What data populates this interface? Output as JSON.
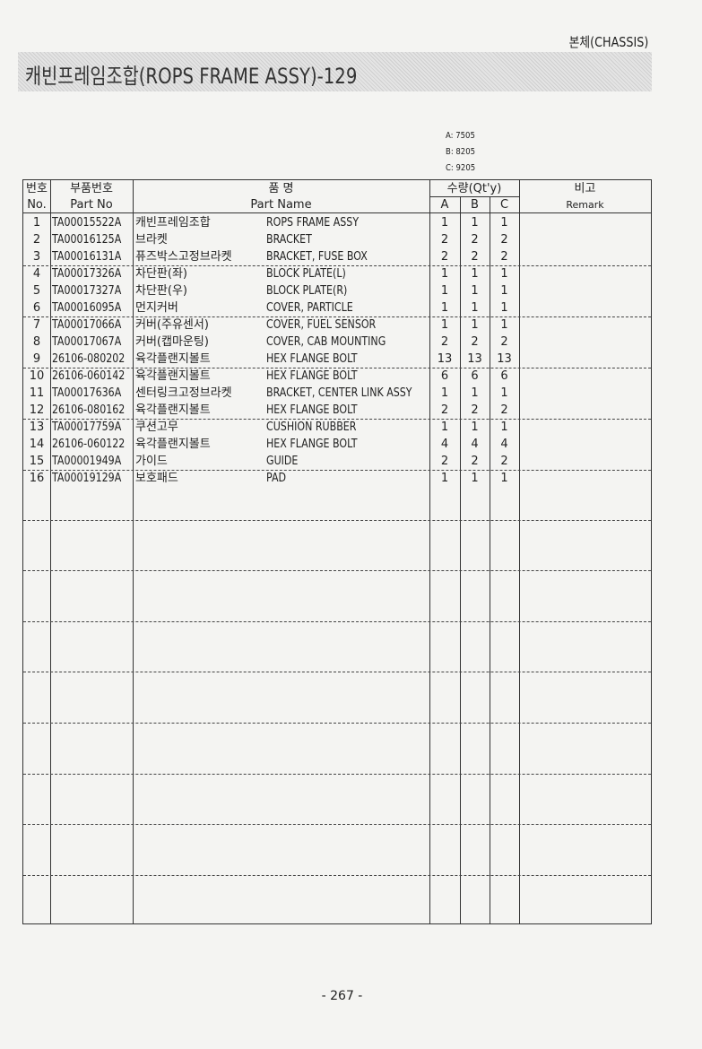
{
  "section": "본체(CHASSIS)",
  "title": "캐빈프레임조합(ROPS FRAME ASSY)-129",
  "models": [
    "A: 7505",
    "B: 8205",
    "C: 9205"
  ],
  "headers": {
    "no_kr": "번호",
    "no_en": "No.",
    "partno_kr": "부품번호",
    "partno_en": "Part No",
    "name_kr": "품 명",
    "name_en": "Part Name",
    "qty": "수량(Qt'y)",
    "a": "A",
    "b": "B",
    "c": "C",
    "remark_kr": "비고",
    "remark_en": "Remark"
  },
  "rows": [
    {
      "no": "1",
      "part_no": "TA00015522A",
      "name_kr": "캐빈프레임조합",
      "name_en": "ROPS FRAME ASSY",
      "a": "1",
      "b": "1",
      "c": "1"
    },
    {
      "no": "2",
      "part_no": "TA00016125A",
      "name_kr": "브라켓",
      "name_en": "BRACKET",
      "a": "2",
      "b": "2",
      "c": "2"
    },
    {
      "no": "3",
      "part_no": "TA00016131A",
      "name_kr": "퓨즈박스고정브라켓",
      "name_en": "BRACKET, FUSE BOX",
      "a": "2",
      "b": "2",
      "c": "2"
    },
    {
      "no": "4",
      "part_no": "TA00017326A",
      "name_kr": "차단판(좌)",
      "name_en": "BLOCK PLATE(L)",
      "a": "1",
      "b": "1",
      "c": "1"
    },
    {
      "no": "5",
      "part_no": "TA00017327A",
      "name_kr": "차단판(우)",
      "name_en": "BLOCK PLATE(R)",
      "a": "1",
      "b": "1",
      "c": "1"
    },
    {
      "no": "6",
      "part_no": "TA00016095A",
      "name_kr": "먼지커버",
      "name_en": "COVER, PARTICLE",
      "a": "1",
      "b": "1",
      "c": "1"
    },
    {
      "no": "7",
      "part_no": "TA00017066A",
      "name_kr": "커버(주유센서)",
      "name_en": "COVER, FUEL SENSOR",
      "a": "1",
      "b": "1",
      "c": "1"
    },
    {
      "no": "8",
      "part_no": "TA00017067A",
      "name_kr": "커버(캡마운팅)",
      "name_en": "COVER, CAB MOUNTING",
      "a": "2",
      "b": "2",
      "c": "2"
    },
    {
      "no": "9",
      "part_no": "26106-080202",
      "name_kr": "육각플랜지볼트",
      "name_en": "HEX FLANGE BOLT",
      "a": "13",
      "b": "13",
      "c": "13"
    },
    {
      "no": "10",
      "part_no": "26106-060142",
      "name_kr": "육각플랜지볼트",
      "name_en": "HEX FLANGE BOLT",
      "a": "6",
      "b": "6",
      "c": "6"
    },
    {
      "no": "11",
      "part_no": "TA00017636A",
      "name_kr": "센터링크고정브라켓",
      "name_en": "BRACKET, CENTER LINK ASSY",
      "a": "1",
      "b": "1",
      "c": "1"
    },
    {
      "no": "12",
      "part_no": "26106-080162",
      "name_kr": "육각플랜지볼트",
      "name_en": "HEX FLANGE BOLT",
      "a": "2",
      "b": "2",
      "c": "2"
    },
    {
      "no": "13",
      "part_no": "TA00017759A",
      "name_kr": "쿠션고무",
      "name_en": "CUSHION RUBBER",
      "a": "1",
      "b": "1",
      "c": "1"
    },
    {
      "no": "14",
      "part_no": "26106-060122",
      "name_kr": "육각플랜지볼트",
      "name_en": "HEX FLANGE BOLT",
      "a": "4",
      "b": "4",
      "c": "4"
    },
    {
      "no": "15",
      "part_no": "TA00001949A",
      "name_kr": "가이드",
      "name_en": "GUIDE",
      "a": "2",
      "b": "2",
      "c": "2"
    },
    {
      "no": "16",
      "part_no": "TA00019129A",
      "name_kr": "보호패드",
      "name_en": "PAD",
      "a": "1",
      "b": "1",
      "c": "1"
    }
  ],
  "page_number": "- 267 -"
}
